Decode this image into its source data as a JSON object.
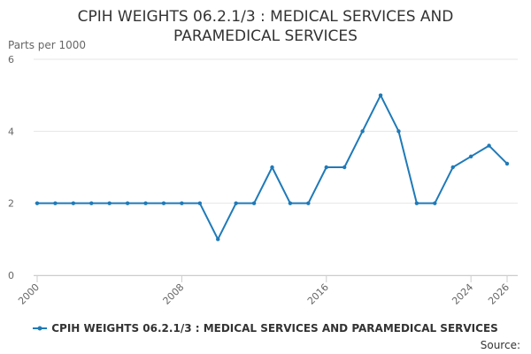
{
  "chart_data": {
    "type": "line",
    "title": "CPIH WEIGHTS 06.2.1/3 : MEDICAL SERVICES AND PARAMEDICAL SERVICES",
    "ylabel": "Parts per 1000",
    "xlabel": "",
    "xlim": [
      2000,
      2026
    ],
    "ylim": [
      0,
      6
    ],
    "x_ticks": [
      2000,
      2008,
      2016,
      2024,
      2026
    ],
    "y_ticks": [
      0,
      2,
      4,
      6
    ],
    "grid": true,
    "legend": "bottom",
    "series": [
      {
        "name": "CPIH WEIGHTS 06.2.1/3 : MEDICAL SERVICES AND PARAMEDICAL SERVICES",
        "color": "#1f7ab8",
        "x": [
          2000,
          2001,
          2002,
          2003,
          2004,
          2005,
          2006,
          2007,
          2008,
          2009,
          2010,
          2011,
          2012,
          2013,
          2014,
          2015,
          2016,
          2017,
          2018,
          2019,
          2020,
          2021,
          2022,
          2023,
          2024,
          2025,
          2026
        ],
        "y": [
          2,
          2,
          2,
          2,
          2,
          2,
          2,
          2,
          2,
          2,
          1,
          2,
          2,
          3,
          2,
          2,
          3,
          3,
          4,
          5,
          4,
          2,
          2,
          3,
          3.3,
          3.6,
          3.1
        ]
      }
    ]
  },
  "source_label": "Source:"
}
